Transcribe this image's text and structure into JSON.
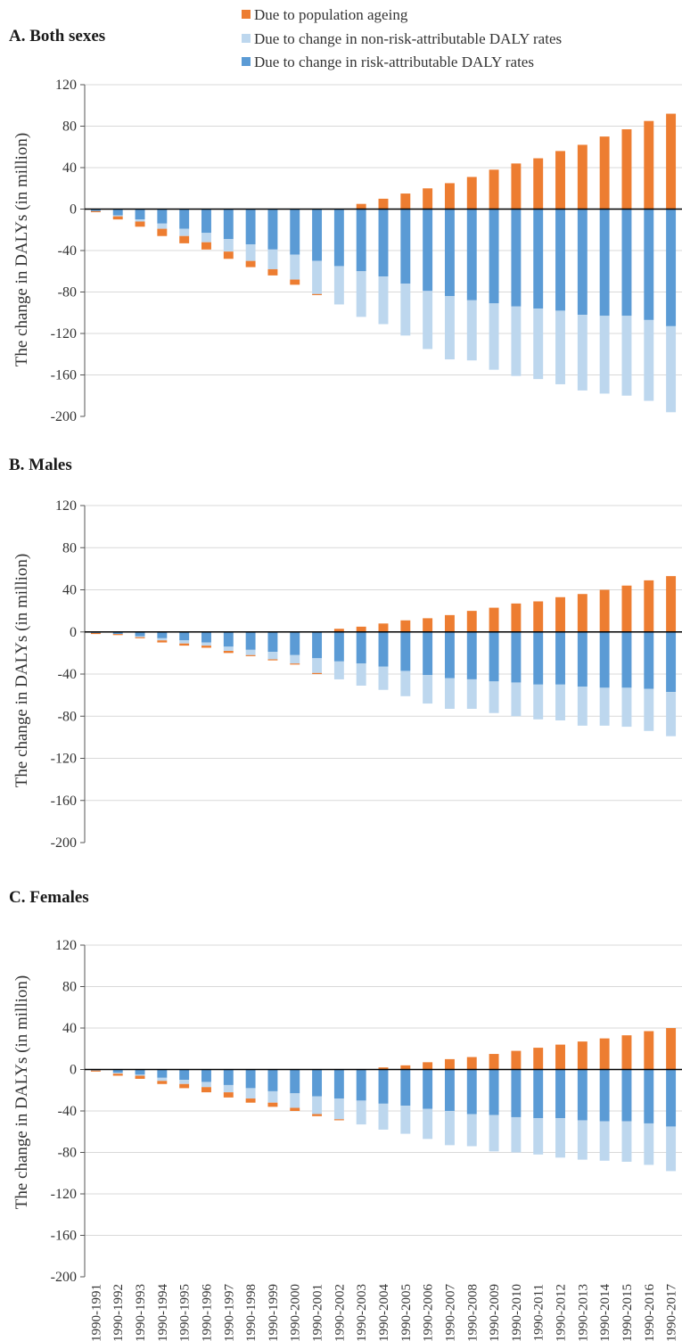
{
  "colors": {
    "ageing": "#ED7D31",
    "non_risk": "#BDD7EE",
    "risk": "#5B9BD5",
    "grid": "#D9D9D9",
    "axis": "#000000"
  },
  "legend": [
    {
      "label": "Due to population ageing",
      "color": "#ED7D31"
    },
    {
      "label": "Due to change in non-risk-attributable DALY rates",
      "color": "#BDD7EE"
    },
    {
      "label": "Due to change in risk-attributable DALY rates",
      "color": "#5B9BD5"
    }
  ],
  "chart_data": [
    {
      "type": "bar",
      "stacked": true,
      "title": "A. Both sexes",
      "ylabel": "The change in DALYs (in million)",
      "ylim": [
        -200,
        120
      ],
      "yticks": [
        120,
        80,
        40,
        0,
        -40,
        -80,
        -120,
        -160,
        -200
      ],
      "grid": true,
      "categories": [
        "1990-1991",
        "1990-1992",
        "1990-1993",
        "1990-1994",
        "1990-1995",
        "1990-1996",
        "1990-1997",
        "1990-1998",
        "1990-1999",
        "1990-2000",
        "1990-2001",
        "1990-2002",
        "1990-2003",
        "1990-2004",
        "1990-2005",
        "1990-2006",
        "1990-2007",
        "1990-2008",
        "1990-2009",
        "1990-2010",
        "1990-2011",
        "1990-2012",
        "1990-2013",
        "1990-2014",
        "1990-2015",
        "1990-2016",
        "1990-2017"
      ],
      "series": [
        {
          "name": "Due to change in risk-attributable DALY rates",
          "values": [
            -2,
            -6,
            -10,
            -14,
            -19,
            -23,
            -29,
            -34,
            -39,
            -44,
            -50,
            -55,
            -60,
            -65,
            -72,
            -79,
            -84,
            -88,
            -91,
            -94,
            -96,
            -98,
            -102,
            -103,
            -103,
            -107,
            -113
          ]
        },
        {
          "name": "Due to change in non-risk-attributable DALY rates",
          "values": [
            0,
            -1,
            -2,
            -5,
            -7,
            -9,
            -12,
            -16,
            -19,
            -24,
            -32,
            -37,
            -44,
            -46,
            -50,
            -56,
            -61,
            -58,
            -64,
            -67,
            -68,
            -71,
            -73,
            -75,
            -77,
            -78,
            -83
          ]
        },
        {
          "name": "Due to population ageing",
          "values": [
            -1,
            -3,
            -5,
            -7,
            -7,
            -7,
            -7,
            -6,
            -6,
            -5,
            -1,
            0,
            5,
            10,
            15,
            20,
            25,
            31,
            38,
            44,
            49,
            56,
            62,
            70,
            77,
            85,
            92
          ]
        }
      ]
    },
    {
      "type": "bar",
      "stacked": true,
      "title": "B. Males",
      "ylabel": "The change in DALYs (in million)",
      "ylim": [
        -200,
        120
      ],
      "yticks": [
        120,
        80,
        40,
        0,
        -40,
        -80,
        -120,
        -160,
        -200
      ],
      "grid": true,
      "categories": [
        "1990-1991",
        "1990-1992",
        "1990-1993",
        "1990-1994",
        "1990-1995",
        "1990-1996",
        "1990-1997",
        "1990-1998",
        "1990-1999",
        "1990-2000",
        "1990-2001",
        "1990-2002",
        "1990-2003",
        "1990-2004",
        "1990-2005",
        "1990-2006",
        "1990-2007",
        "1990-2008",
        "1990-2009",
        "1990-2010",
        "1990-2011",
        "1990-2012",
        "1990-2013",
        "1990-2014",
        "1990-2015",
        "1990-2016",
        "1990-2017"
      ],
      "series": [
        {
          "name": "Due to change in risk-attributable DALY rates",
          "values": [
            -1,
            -2,
            -4,
            -6,
            -8,
            -10,
            -14,
            -17,
            -19,
            -22,
            -25,
            -28,
            -30,
            -33,
            -37,
            -41,
            -44,
            -45,
            -47,
            -48,
            -50,
            -50,
            -52,
            -53,
            -53,
            -54,
            -57
          ]
        },
        {
          "name": "Due to change in non-risk-attributable DALY rates",
          "values": [
            0,
            0,
            -1,
            -2,
            -3,
            -3,
            -4,
            -5,
            -7,
            -8,
            -14,
            -17,
            -21,
            -22,
            -24,
            -27,
            -29,
            -28,
            -30,
            -32,
            -33,
            -34,
            -37,
            -36,
            -37,
            -40,
            -42
          ]
        },
        {
          "name": "Due to population ageing",
          "values": [
            -1,
            -1,
            -1,
            -2,
            -2,
            -2,
            -2,
            -1,
            -1,
            -1,
            -1,
            3,
            5,
            8,
            11,
            13,
            16,
            20,
            23,
            27,
            29,
            33,
            36,
            40,
            44,
            49,
            53
          ]
        }
      ]
    },
    {
      "type": "bar",
      "stacked": true,
      "title": "C. Females",
      "ylabel": "The change in DALYs (in million)",
      "ylim": [
        -200,
        120
      ],
      "yticks": [
        120,
        80,
        40,
        0,
        -40,
        -80,
        -120,
        -160,
        -200
      ],
      "grid": true,
      "categories": [
        "1990-1991",
        "1990-1992",
        "1990-1993",
        "1990-1994",
        "1990-1995",
        "1990-1996",
        "1990-1997",
        "1990-1998",
        "1990-1999",
        "1990-2000",
        "1990-2001",
        "1990-2002",
        "1990-2003",
        "1990-2004",
        "1990-2005",
        "1990-2006",
        "1990-2007",
        "1990-2008",
        "1990-2009",
        "1990-2010",
        "1990-2011",
        "1990-2012",
        "1990-2013",
        "1990-2014",
        "1990-2015",
        "1990-2016",
        "1990-2017"
      ],
      "series": [
        {
          "name": "Due to change in risk-attributable DALY rates",
          "values": [
            -1,
            -3,
            -5,
            -8,
            -10,
            -12,
            -15,
            -18,
            -21,
            -23,
            -26,
            -28,
            -30,
            -33,
            -35,
            -38,
            -40,
            -43,
            -44,
            -46,
            -47,
            -47,
            -49,
            -50,
            -50,
            -52,
            -55
          ]
        },
        {
          "name": "Due to change in non-risk-attributable DALY rates",
          "values": [
            0,
            -1,
            -1,
            -3,
            -4,
            -5,
            -7,
            -10,
            -11,
            -14,
            -17,
            -20,
            -23,
            -25,
            -27,
            -29,
            -33,
            -31,
            -35,
            -34,
            -35,
            -38,
            -38,
            -38,
            -39,
            -40,
            -43
          ]
        },
        {
          "name": "Due to population ageing",
          "values": [
            -1,
            -2,
            -3,
            -3,
            -4,
            -5,
            -5,
            -4,
            -4,
            -3,
            -2,
            -1,
            0,
            2,
            4,
            7,
            10,
            12,
            15,
            18,
            21,
            24,
            27,
            30,
            33,
            37,
            40
          ]
        }
      ]
    }
  ]
}
